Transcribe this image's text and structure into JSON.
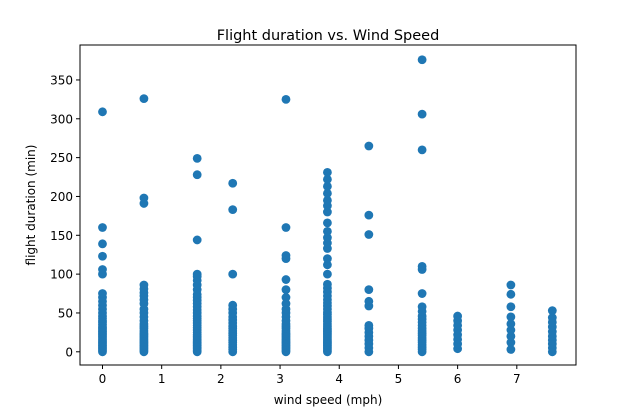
{
  "chart_data": {
    "type": "scatter",
    "title": "Flight duration vs. Wind Speed",
    "xlabel": "wind speed (mph)",
    "ylabel": "flight duration (min)",
    "xlim": [
      -0.38,
      8.0
    ],
    "ylim": [
      -17,
      395
    ],
    "xticks": [
      0,
      1,
      2,
      3,
      4,
      5,
      6,
      7
    ],
    "yticks": [
      0,
      50,
      100,
      150,
      200,
      250,
      300,
      350
    ],
    "grid": false,
    "legend": "none",
    "marker_color": "#1f77b4",
    "series": [
      {
        "points": [
          [
            0,
            0
          ],
          [
            0,
            2
          ],
          [
            0,
            4
          ],
          [
            0,
            6
          ],
          [
            0,
            8
          ],
          [
            0,
            10
          ],
          [
            0,
            12
          ],
          [
            0,
            14
          ],
          [
            0,
            16
          ],
          [
            0,
            18
          ],
          [
            0,
            20
          ],
          [
            0,
            22
          ],
          [
            0,
            24
          ],
          [
            0,
            26
          ],
          [
            0,
            28
          ],
          [
            0,
            30
          ],
          [
            0,
            32
          ],
          [
            0,
            35
          ],
          [
            0,
            38
          ],
          [
            0,
            40
          ],
          [
            0,
            43
          ],
          [
            0,
            46
          ],
          [
            0,
            50
          ],
          [
            0,
            55
          ],
          [
            0,
            60
          ],
          [
            0,
            65
          ],
          [
            0,
            70
          ],
          [
            0,
            75
          ],
          [
            0,
            100
          ],
          [
            0,
            106
          ],
          [
            0,
            123
          ],
          [
            0,
            139
          ],
          [
            0,
            160
          ],
          [
            0,
            309
          ],
          [
            0.7,
            0
          ],
          [
            0.7,
            2
          ],
          [
            0.7,
            4
          ],
          [
            0.7,
            6
          ],
          [
            0.7,
            8
          ],
          [
            0.7,
            10
          ],
          [
            0.7,
            12
          ],
          [
            0.7,
            14
          ],
          [
            0.7,
            16
          ],
          [
            0.7,
            18
          ],
          [
            0.7,
            20
          ],
          [
            0.7,
            22
          ],
          [
            0.7,
            24
          ],
          [
            0.7,
            27
          ],
          [
            0.7,
            30
          ],
          [
            0.7,
            33
          ],
          [
            0.7,
            36
          ],
          [
            0.7,
            40
          ],
          [
            0.7,
            45
          ],
          [
            0.7,
            50
          ],
          [
            0.7,
            55
          ],
          [
            0.7,
            62
          ],
          [
            0.7,
            67
          ],
          [
            0.7,
            72
          ],
          [
            0.7,
            76
          ],
          [
            0.7,
            81
          ],
          [
            0.7,
            86
          ],
          [
            0.7,
            191
          ],
          [
            0.7,
            198
          ],
          [
            0.7,
            326
          ],
          [
            1.6,
            0
          ],
          [
            1.6,
            2
          ],
          [
            1.6,
            4
          ],
          [
            1.6,
            6
          ],
          [
            1.6,
            8
          ],
          [
            1.6,
            10
          ],
          [
            1.6,
            12
          ],
          [
            1.6,
            14
          ],
          [
            1.6,
            16
          ],
          [
            1.6,
            18
          ],
          [
            1.6,
            20
          ],
          [
            1.6,
            22
          ],
          [
            1.6,
            25
          ],
          [
            1.6,
            28
          ],
          [
            1.6,
            31
          ],
          [
            1.6,
            34
          ],
          [
            1.6,
            37
          ],
          [
            1.6,
            40
          ],
          [
            1.6,
            43
          ],
          [
            1.6,
            46
          ],
          [
            1.6,
            50
          ],
          [
            1.6,
            54
          ],
          [
            1.6,
            58
          ],
          [
            1.6,
            62
          ],
          [
            1.6,
            66
          ],
          [
            1.6,
            70
          ],
          [
            1.6,
            74
          ],
          [
            1.6,
            80
          ],
          [
            1.6,
            86
          ],
          [
            1.6,
            92
          ],
          [
            1.6,
            97
          ],
          [
            1.6,
            100
          ],
          [
            1.6,
            144
          ],
          [
            1.6,
            228
          ],
          [
            1.6,
            249
          ],
          [
            2.2,
            0
          ],
          [
            2.2,
            3
          ],
          [
            2.2,
            6
          ],
          [
            2.2,
            9
          ],
          [
            2.2,
            12
          ],
          [
            2.2,
            15
          ],
          [
            2.2,
            18
          ],
          [
            2.2,
            21
          ],
          [
            2.2,
            24
          ],
          [
            2.2,
            27
          ],
          [
            2.2,
            30
          ],
          [
            2.2,
            33
          ],
          [
            2.2,
            37
          ],
          [
            2.2,
            41
          ],
          [
            2.2,
            45
          ],
          [
            2.2,
            50
          ],
          [
            2.2,
            55
          ],
          [
            2.2,
            60
          ],
          [
            2.2,
            100
          ],
          [
            2.2,
            183
          ],
          [
            2.2,
            217
          ],
          [
            3.1,
            0
          ],
          [
            3.1,
            2
          ],
          [
            3.1,
            4
          ],
          [
            3.1,
            6
          ],
          [
            3.1,
            8
          ],
          [
            3.1,
            10
          ],
          [
            3.1,
            12
          ],
          [
            3.1,
            14
          ],
          [
            3.1,
            16
          ],
          [
            3.1,
            18
          ],
          [
            3.1,
            20
          ],
          [
            3.1,
            22
          ],
          [
            3.1,
            24
          ],
          [
            3.1,
            27
          ],
          [
            3.1,
            30
          ],
          [
            3.1,
            33
          ],
          [
            3.1,
            36
          ],
          [
            3.1,
            40
          ],
          [
            3.1,
            45
          ],
          [
            3.1,
            50
          ],
          [
            3.1,
            55
          ],
          [
            3.1,
            62
          ],
          [
            3.1,
            70
          ],
          [
            3.1,
            80
          ],
          [
            3.1,
            93
          ],
          [
            3.1,
            120
          ],
          [
            3.1,
            124
          ],
          [
            3.1,
            160
          ],
          [
            3.1,
            325
          ],
          [
            3.8,
            0
          ],
          [
            3.8,
            2
          ],
          [
            3.8,
            4
          ],
          [
            3.8,
            6
          ],
          [
            3.8,
            8
          ],
          [
            3.8,
            10
          ],
          [
            3.8,
            12
          ],
          [
            3.8,
            14
          ],
          [
            3.8,
            16
          ],
          [
            3.8,
            18
          ],
          [
            3.8,
            20
          ],
          [
            3.8,
            22
          ],
          [
            3.8,
            24
          ],
          [
            3.8,
            26
          ],
          [
            3.8,
            28
          ],
          [
            3.8,
            30
          ],
          [
            3.8,
            33
          ],
          [
            3.8,
            36
          ],
          [
            3.8,
            39
          ],
          [
            3.8,
            42
          ],
          [
            3.8,
            45
          ],
          [
            3.8,
            48
          ],
          [
            3.8,
            51
          ],
          [
            3.8,
            55
          ],
          [
            3.8,
            59
          ],
          [
            3.8,
            63
          ],
          [
            3.8,
            67
          ],
          [
            3.8,
            72
          ],
          [
            3.8,
            77
          ],
          [
            3.8,
            82
          ],
          [
            3.8,
            87
          ],
          [
            3.8,
            100
          ],
          [
            3.8,
            112
          ],
          [
            3.8,
            120
          ],
          [
            3.8,
            133
          ],
          [
            3.8,
            140
          ],
          [
            3.8,
            147
          ],
          [
            3.8,
            155
          ],
          [
            3.8,
            166
          ],
          [
            3.8,
            180
          ],
          [
            3.8,
            188
          ],
          [
            3.8,
            195
          ],
          [
            3.8,
            204
          ],
          [
            3.8,
            213
          ],
          [
            3.8,
            222
          ],
          [
            3.8,
            231
          ],
          [
            4.5,
            0
          ],
          [
            4.5,
            5
          ],
          [
            4.5,
            10
          ],
          [
            4.5,
            15
          ],
          [
            4.5,
            20
          ],
          [
            4.5,
            25
          ],
          [
            4.5,
            30
          ],
          [
            4.5,
            34
          ],
          [
            4.5,
            59
          ],
          [
            4.5,
            65
          ],
          [
            4.5,
            80
          ],
          [
            4.5,
            151
          ],
          [
            4.5,
            176
          ],
          [
            4.5,
            265
          ],
          [
            5.4,
            0
          ],
          [
            5.4,
            3
          ],
          [
            5.4,
            6
          ],
          [
            5.4,
            9
          ],
          [
            5.4,
            12
          ],
          [
            5.4,
            15
          ],
          [
            5.4,
            18
          ],
          [
            5.4,
            21
          ],
          [
            5.4,
            24
          ],
          [
            5.4,
            27
          ],
          [
            5.4,
            30
          ],
          [
            5.4,
            34
          ],
          [
            5.4,
            38
          ],
          [
            5.4,
            42
          ],
          [
            5.4,
            46
          ],
          [
            5.4,
            52
          ],
          [
            5.4,
            58
          ],
          [
            5.4,
            75
          ],
          [
            5.4,
            106
          ],
          [
            5.4,
            110
          ],
          [
            5.4,
            260
          ],
          [
            5.4,
            306
          ],
          [
            5.4,
            376
          ],
          [
            6.0,
            4
          ],
          [
            6.0,
            10
          ],
          [
            6.0,
            16
          ],
          [
            6.0,
            22
          ],
          [
            6.0,
            28
          ],
          [
            6.0,
            34
          ],
          [
            6.0,
            40
          ],
          [
            6.0,
            46
          ],
          [
            6.9,
            3
          ],
          [
            6.9,
            12
          ],
          [
            6.9,
            20
          ],
          [
            6.9,
            28
          ],
          [
            6.9,
            36
          ],
          [
            6.9,
            45
          ],
          [
            6.9,
            58
          ],
          [
            6.9,
            74
          ],
          [
            6.9,
            86
          ],
          [
            7.6,
            0
          ],
          [
            7.6,
            5
          ],
          [
            7.6,
            10
          ],
          [
            7.6,
            15
          ],
          [
            7.6,
            20
          ],
          [
            7.6,
            26
          ],
          [
            7.6,
            32
          ],
          [
            7.6,
            38
          ],
          [
            7.6,
            44
          ],
          [
            7.6,
            53
          ]
        ]
      }
    ]
  }
}
